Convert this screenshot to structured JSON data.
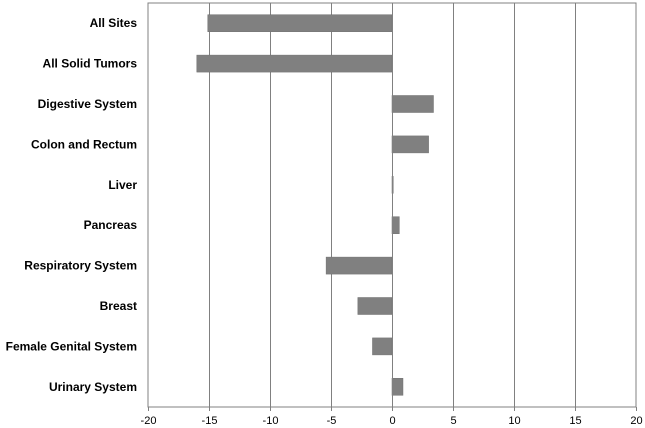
{
  "chart_data": {
    "type": "bar",
    "orientation": "horizontal",
    "categories": [
      "All Sites",
      "All Solid Tumors",
      "Digestive System",
      "Colon and Rectum",
      "Liver",
      "Pancreas",
      "Respiratory System",
      "Breast",
      "Female Genital System",
      "Urinary System"
    ],
    "values": [
      -15.1,
      -16.0,
      3.4,
      3.0,
      0.1,
      0.6,
      -5.4,
      -2.8,
      -1.6,
      0.9
    ],
    "xlim": [
      -20,
      20
    ],
    "xticks": [
      -20,
      -15,
      -10,
      -5,
      0,
      5,
      10,
      15,
      20
    ],
    "tick_labels": [
      "-20",
      "-15",
      "-10",
      "-5",
      "0",
      "5",
      "10",
      "15",
      "20"
    ],
    "grid": true,
    "bar_color": "#808080",
    "title": "",
    "xlabel": "",
    "ylabel": ""
  }
}
